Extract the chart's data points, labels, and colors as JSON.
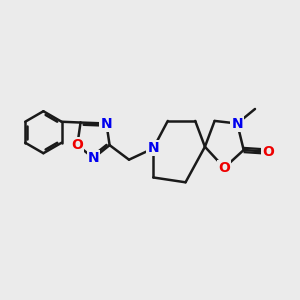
{
  "bg_color": "#ebebeb",
  "bond_color": "#1a1a1a",
  "nitrogen_color": "#0000ee",
  "oxygen_color": "#ee0000",
  "line_width": 1.8,
  "font_size_atom": 10,
  "fig_width": 3.0,
  "fig_height": 3.0,
  "dpi": 100,
  "xlim": [
    -4.2,
    5.0
  ],
  "ylim": [
    -3.0,
    3.0
  ]
}
